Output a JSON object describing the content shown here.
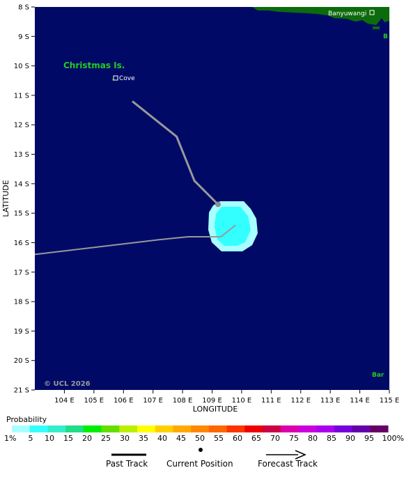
{
  "map": {
    "y_axis_title": "LATITUDE",
    "x_axis_title": "LONGITUDE",
    "lat_labels": [
      "8 S",
      "9 S",
      "10 S",
      "11 S",
      "12 S",
      "13 S",
      "14 S",
      "15 S",
      "16 S",
      "17 S",
      "18 S",
      "19 S",
      "20 S",
      "21 S"
    ],
    "lon_labels": [
      "104 E",
      "105 E",
      "106 E",
      "107 E",
      "108 E",
      "109 E",
      "110 E",
      "111 E",
      "112 E",
      "113 E",
      "114 E",
      "115 E"
    ],
    "lat_range": [
      -8,
      -21
    ],
    "lon_range": [
      103,
      115
    ],
    "ocean_color": "#000a66",
    "land_color": "#0c6b0c"
  },
  "places": {
    "christmas_island": "Christmas Is.",
    "cove": "Cove",
    "banyuwangi": "Banyuwangi",
    "edge_label_top": "B",
    "edge_label_bottom": "Bar"
  },
  "copyright": "© UCL 2026",
  "track": {
    "past": [
      [
        -16.4,
        103.0
      ],
      [
        -15.9,
        107.2
      ],
      [
        -15.8,
        108.2
      ],
      [
        -15.8,
        109.3
      ],
      [
        -15.4,
        109.8
      ]
    ],
    "forecast": [
      [
        -14.7,
        109.2
      ],
      [
        -13.9,
        108.4
      ],
      [
        -12.4,
        107.8
      ],
      [
        -11.2,
        106.3
      ]
    ],
    "current_position": [
      -14.7,
      109.2
    ]
  },
  "legend": {
    "title": "Probability",
    "ticks": [
      "1%",
      "5",
      "10",
      "15",
      "20",
      "25",
      "30",
      "35",
      "40",
      "45",
      "50",
      "55",
      "60",
      "65",
      "70",
      "75",
      "80",
      "85",
      "90",
      "95",
      "100%"
    ],
    "colors": [
      "#a8ffff",
      "#33ffff",
      "#33eecc",
      "#22dd88",
      "#00ee00",
      "#66dd00",
      "#bbee00",
      "#ffff00",
      "#ffd000",
      "#ffaa00",
      "#ff8800",
      "#ff6600",
      "#ff3300",
      "#ee0000",
      "#cc0044",
      "#dd00aa",
      "#cc00dd",
      "#aa00ee",
      "#7700dd",
      "#6600aa",
      "#660066"
    ],
    "past_track_label": "Past Track",
    "current_position_label": "Current Position",
    "forecast_track_label": "Forecast Track"
  }
}
